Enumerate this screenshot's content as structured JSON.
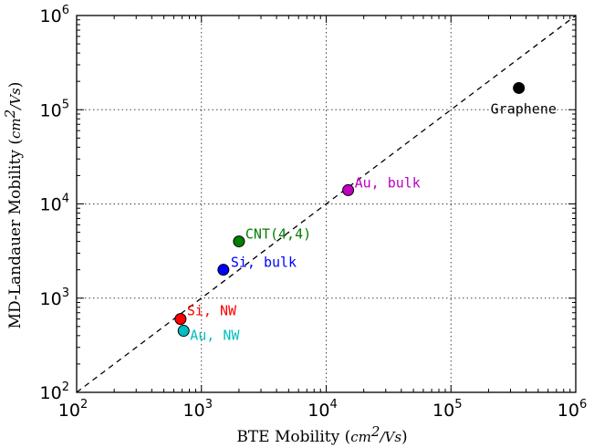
{
  "chart_data": {
    "type": "scatter",
    "title": "",
    "xlabel": "BTE Mobility",
    "xunit_base": "cm",
    "xunit_exp": "2",
    "xunit_rest": "/Vs",
    "ylabel": "MD-Landauer Mobility",
    "yunit_base": "cm",
    "yunit_exp": "2",
    "yunit_rest": "/Vs",
    "xscale": "log",
    "yscale": "log",
    "xlim": [
      100,
      1000000
    ],
    "ylim": [
      100,
      1000000
    ],
    "grid": true,
    "reference_line": "y = x (dashed)",
    "x_ticks": [
      {
        "base": "10",
        "exp": "2",
        "value": 100
      },
      {
        "base": "10",
        "exp": "3",
        "value": 1000
      },
      {
        "base": "10",
        "exp": "4",
        "value": 10000
      },
      {
        "base": "10",
        "exp": "5",
        "value": 100000
      },
      {
        "base": "10",
        "exp": "6",
        "value": 1000000
      }
    ],
    "y_ticks": [
      {
        "base": "10",
        "exp": "2",
        "value": 100
      },
      {
        "base": "10",
        "exp": "3",
        "value": 1000
      },
      {
        "base": "10",
        "exp": "4",
        "value": 10000
      },
      {
        "base": "10",
        "exp": "5",
        "value": 100000
      },
      {
        "base": "10",
        "exp": "6",
        "value": 1000000
      }
    ],
    "points": [
      {
        "label": "Graphene",
        "x": 350000,
        "y": 170000,
        "color": "#000000"
      },
      {
        "label": "Au, bulk",
        "x": 15000,
        "y": 14000,
        "color": "#bf00bf"
      },
      {
        "label": "CNT(4,4)",
        "x": 2000,
        "y": 4000,
        "color": "#007f00"
      },
      {
        "label": "Si, bulk",
        "x": 1500,
        "y": 2000,
        "color": "#0000ff"
      },
      {
        "label": "Si, NW",
        "x": 680,
        "y": 600,
        "color": "#ff0000"
      },
      {
        "label": "Au, NW",
        "x": 720,
        "y": 450,
        "color": "#00bfbf"
      }
    ]
  }
}
